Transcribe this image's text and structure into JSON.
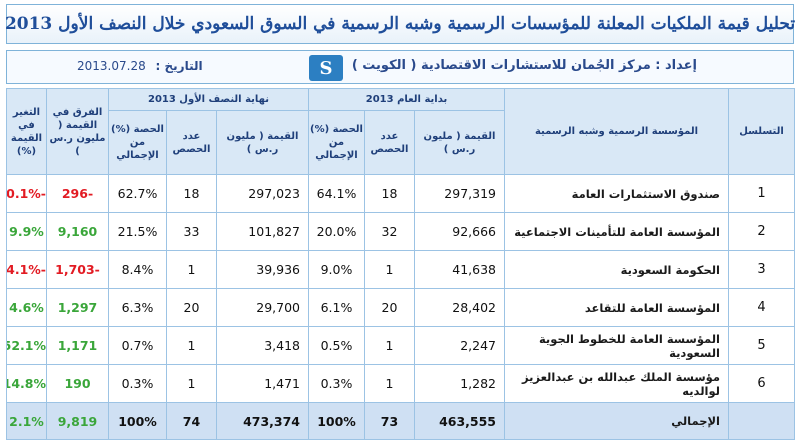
{
  "title": "تحليل قيمة الملكيات المعلنة للمؤسسات الرسمية وشبه الرسمية في السوق السعودي خلال النصف الأول 2013",
  "info": {
    "prepared_by": "إعداد : مركز الجُمان للاستشارات الاقتصادية ( الكويت )",
    "date_label": "التاريخ :",
    "date_value": "2013.07.28",
    "logo_glyph": "S"
  },
  "headers": {
    "serial": "التسلسل",
    "institution": "المؤسسة الرسمية وشبه الرسمية",
    "start_group": "بداية العام 2013",
    "end_group": "نهاية النصف الأول 2013",
    "value": "القيمة ( مليون ر.س )",
    "shares": "عدد الحصص",
    "share_pct": "الحصة (%) من الإجمالي",
    "diff_value": "الفرق في القيمة ( مليون ر.س )",
    "change_pct": "التغير في القيمة (%)"
  },
  "rows": [
    {
      "idx": "1",
      "name": "صندوق الاستثمارات العامة",
      "start_value": "297,319",
      "start_shares": "18",
      "start_pct": "64.1%",
      "end_value": "297,023",
      "end_shares": "18",
      "end_pct": "62.7%",
      "diff": "-296",
      "change": "-0.1%",
      "sign": "neg"
    },
    {
      "idx": "2",
      "name": "المؤسسة العامة للتأمينات الاجتماعية",
      "start_value": "92,666",
      "start_shares": "32",
      "start_pct": "20.0%",
      "end_value": "101,827",
      "end_shares": "33",
      "end_pct": "21.5%",
      "diff": "9,160",
      "change": "9.9%",
      "sign": "pos"
    },
    {
      "idx": "3",
      "name": "الحكومة السعودية",
      "start_value": "41,638",
      "start_shares": "1",
      "start_pct": "9.0%",
      "end_value": "39,936",
      "end_shares": "1",
      "end_pct": "8.4%",
      "diff": "-1,703",
      "change": "-4.1%",
      "sign": "neg"
    },
    {
      "idx": "4",
      "name": "المؤسسة العامة للتقاعد",
      "start_value": "28,402",
      "start_shares": "20",
      "start_pct": "6.1%",
      "end_value": "29,700",
      "end_shares": "20",
      "end_pct": "6.3%",
      "diff": "1,297",
      "change": "4.6%",
      "sign": "pos"
    },
    {
      "idx": "5",
      "name": "المؤسسة العامة للخطوط الجوية السعودية",
      "start_value": "2,247",
      "start_shares": "1",
      "start_pct": "0.5%",
      "end_value": "3,418",
      "end_shares": "1",
      "end_pct": "0.7%",
      "diff": "1,171",
      "change": "52.1%",
      "sign": "pos"
    },
    {
      "idx": "6",
      "name": "مؤسسة الملك عبدالله بن عبدالعزيز لوالديه",
      "start_value": "1,282",
      "start_shares": "1",
      "start_pct": "0.3%",
      "end_value": "1,471",
      "end_shares": "1",
      "end_pct": "0.3%",
      "diff": "190",
      "change": "14.8%",
      "sign": "pos"
    }
  ],
  "total": {
    "name": "الإجمالي",
    "start_value": "463,555",
    "start_shares": "73",
    "start_pct": "100%",
    "end_value": "473,374",
    "end_shares": "74",
    "end_pct": "100%",
    "diff": "9,819",
    "change": "2.1%",
    "sign": "pos"
  },
  "colors": {
    "title": "#1f4e9a",
    "header_bg": "#d9e8f6",
    "border": "#9cc3e4",
    "negative": "#e21b23",
    "positive": "#3aa63a",
    "total_bg": "#cfe0f3"
  }
}
